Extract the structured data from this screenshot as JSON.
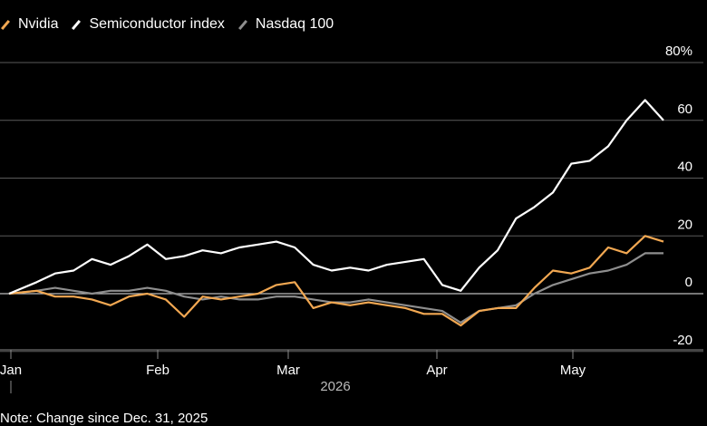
{
  "chart_data": {
    "type": "line",
    "title": "",
    "xlabel": "",
    "ylabel": "",
    "year_label": "2026",
    "x_tick_labels": [
      "Jan",
      "Feb",
      "Mar",
      "Apr",
      "May"
    ],
    "y_ticks": [
      -20,
      0,
      20,
      40,
      60,
      80
    ],
    "y_tick_labels": [
      "-20",
      "0",
      "20",
      "40",
      "60",
      "80%"
    ],
    "ylim": [
      -22,
      82
    ],
    "xlim": [
      0,
      142
    ],
    "grid": true,
    "legend_position": "top-left",
    "note": "Note: Change since Dec. 31, 2025",
    "series": [
      {
        "name": "Nvidia",
        "color": "#f2a852",
        "x": [
          0,
          6,
          10,
          14,
          18,
          22,
          26,
          30,
          34,
          38,
          42,
          46,
          50,
          54,
          58,
          62,
          66,
          70,
          74,
          78,
          82,
          86,
          90,
          94,
          98,
          102,
          106,
          110,
          114,
          118,
          122,
          126,
          130,
          134,
          138,
          142
        ],
        "values": [
          0,
          1,
          -1,
          -1,
          -2,
          -4,
          -1,
          0,
          -2,
          -8,
          -1,
          -2,
          -1,
          0,
          3,
          4,
          -5,
          -3,
          -4,
          -3,
          -4,
          -5,
          -7,
          -7,
          -11,
          -6,
          -5,
          -5,
          2,
          8,
          7,
          9,
          16,
          14,
          20,
          18
        ]
      },
      {
        "name": "Semiconductor index",
        "color": "#ffffff",
        "x": [
          0,
          6,
          10,
          14,
          18,
          22,
          26,
          30,
          34,
          38,
          42,
          46,
          50,
          54,
          58,
          62,
          66,
          70,
          74,
          78,
          82,
          86,
          90,
          94,
          98,
          102,
          106,
          110,
          114,
          118,
          122,
          126,
          130,
          134,
          138,
          142
        ],
        "values": [
          0,
          4,
          7,
          8,
          12,
          10,
          13,
          17,
          12,
          13,
          15,
          14,
          16,
          17,
          18,
          16,
          10,
          8,
          9,
          8,
          10,
          11,
          12,
          3,
          1,
          9,
          15,
          26,
          30,
          35,
          45,
          46,
          51,
          60,
          67,
          60
        ]
      },
      {
        "name": "Nasdaq 100",
        "color": "#8e8e8e",
        "x": [
          0,
          6,
          10,
          14,
          18,
          22,
          26,
          30,
          34,
          38,
          42,
          46,
          50,
          54,
          58,
          62,
          66,
          70,
          74,
          78,
          82,
          86,
          90,
          94,
          98,
          102,
          106,
          110,
          114,
          118,
          122,
          126,
          130,
          134,
          138,
          142
        ],
        "values": [
          0,
          1,
          2,
          1,
          0,
          1,
          1,
          2,
          1,
          -1,
          -2,
          -1,
          -2,
          -2,
          -1,
          -1,
          -2,
          -3,
          -3,
          -2,
          -3,
          -4,
          -5,
          -6,
          -10,
          -6,
          -5,
          -4,
          0,
          3,
          5,
          7,
          8,
          10,
          14,
          14
        ]
      }
    ]
  }
}
